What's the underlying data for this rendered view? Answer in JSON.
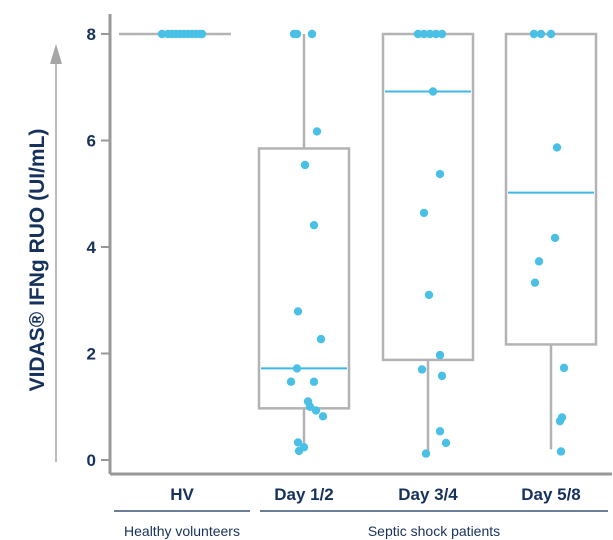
{
  "chart_data": {
    "type": "box",
    "ylabel": "VIDAS® IFNg RUO (UI/mL)",
    "ylim": [
      0,
      8
    ],
    "yticks": [
      "0",
      "2",
      "4",
      "6",
      "8"
    ],
    "categories": [
      "HV",
      "Day 1/2",
      "Day 3/4",
      "Day 5/8"
    ],
    "groups": [
      {
        "label": "Healthy volunteers",
        "categories": [
          "HV"
        ]
      },
      {
        "label": "Septic shock patients",
        "categories": [
          "Day 1/2",
          "Day 3/4",
          "Day 5/8"
        ]
      }
    ],
    "boxes": [
      {
        "category": "HV",
        "min": 8,
        "q1": 8,
        "median": 8,
        "q3": 8,
        "max": 8
      },
      {
        "category": "Day 1/2",
        "min": 0.2,
        "q1": 0.97,
        "median": 1.72,
        "q3": 5.85,
        "max": 8
      },
      {
        "category": "Day 3/4",
        "min": 0.12,
        "q1": 1.88,
        "median": 6.92,
        "q3": 8,
        "max": 8
      },
      {
        "category": "Day 5/8",
        "min": 0.2,
        "q1": 2.17,
        "median": 5.02,
        "q3": 8,
        "max": 8
      }
    ],
    "points": [
      {
        "category": "HV",
        "values": [
          8,
          8,
          8,
          8,
          8,
          8,
          8,
          8,
          8,
          8,
          8
        ]
      },
      {
        "category": "Day 1/2",
        "values": [
          8,
          8,
          8,
          6.17,
          5.54,
          4.41,
          2.79,
          2.27,
          1.72,
          1.47,
          1.47,
          1.1,
          1.0,
          0.93,
          0.82,
          0.33,
          0.24,
          0.17
        ]
      },
      {
        "category": "Day 3/4",
        "values": [
          8,
          8,
          8,
          8,
          8,
          6.92,
          5.37,
          4.64,
          3.1,
          1.97,
          1.7,
          1.58,
          0.54,
          0.32,
          0.12
        ]
      },
      {
        "category": "Day 5/8",
        "values": [
          8,
          8,
          8,
          5.87,
          4.17,
          3.73,
          3.33,
          1.73,
          0.8,
          0.73,
          0.16
        ]
      }
    ],
    "colors": {
      "box": "#b3b3b3",
      "median": "#3fb8e6",
      "points": "#4bc0e6",
      "text": "#16325c",
      "axis": "#999999"
    },
    "grid": false,
    "legend": "none"
  }
}
